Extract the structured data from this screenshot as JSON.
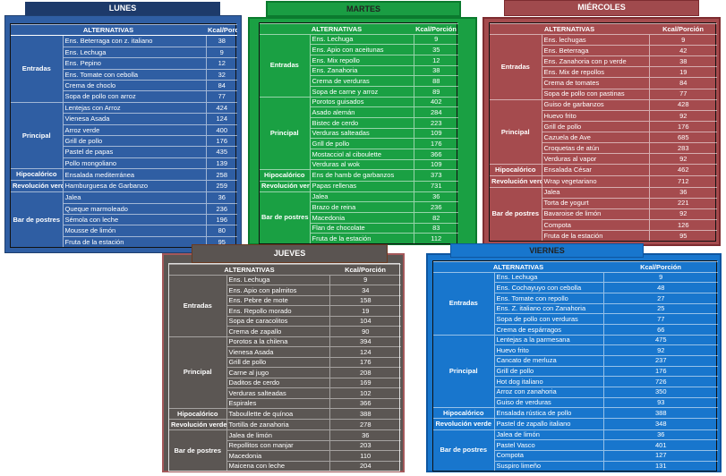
{
  "days": [
    {
      "key": "lunes",
      "title": "LUNES",
      "header": {
        "alt": "ALTERNATIVAS",
        "kcal": "Kcal/Porción"
      },
      "colors": {
        "card": "#2f5ea3",
        "tab": "#1d3a6a"
      },
      "sections": [
        {
          "name": "Entradas",
          "rows": [
            {
              "item": "Ens. Beterraga con z. italiano",
              "kcal": "38"
            },
            {
              "item": "Ens. Lechuga",
              "kcal": "9"
            },
            {
              "item": "Ens. Pepino",
              "kcal": "12"
            },
            {
              "item": "Ens. Tomate con cebolla",
              "kcal": "32"
            },
            {
              "item": "Crema de choclo",
              "kcal": "84"
            },
            {
              "item": "Sopa de pollo con arroz",
              "kcal": "77"
            }
          ]
        },
        {
          "name": "Principal",
          "rows": [
            {
              "item": "Lentejas con Arroz",
              "kcal": "424"
            },
            {
              "item": "Vienesa Asada",
              "kcal": "124"
            },
            {
              "item": "Arroz verde",
              "kcal": "400"
            },
            {
              "item": "Grill de pollo",
              "kcal": "176"
            },
            {
              "item": "Pastel de papas",
              "kcal": "435"
            },
            {
              "item": "Pollo mongoliano",
              "kcal": "139"
            }
          ]
        },
        {
          "name": "Hipocalórico",
          "rows": [
            {
              "item": "Ensalada mediterránea",
              "kcal": "258"
            }
          ]
        },
        {
          "name": "Revolución verde",
          "rows": [
            {
              "item": "Hamburguesa de Garbanzo",
              "kcal": "259"
            }
          ]
        },
        {
          "name": "Bar de postres",
          "rows": [
            {
              "item": "Jalea",
              "kcal": "36"
            },
            {
              "item": "Queque marmoleado",
              "kcal": "236"
            },
            {
              "item": "Sémola con leche",
              "kcal": "196"
            },
            {
              "item": "Mousse de limón",
              "kcal": "80"
            },
            {
              "item": "Fruta de la estación",
              "kcal": "95"
            }
          ]
        }
      ]
    },
    {
      "key": "martes",
      "title": "MARTES",
      "header": {
        "alt": "ALTERNATIVAS",
        "kcal": "Kcal/Porción"
      },
      "colors": {
        "card": "#1aa043",
        "tab": "#1a9d43"
      },
      "sections": [
        {
          "name": "Entradas",
          "rows": [
            {
              "item": "Ens. Lechuga",
              "kcal": "9"
            },
            {
              "item": "Ens. Apio con aceitunas",
              "kcal": "35"
            },
            {
              "item": "Ens. Mix repollo",
              "kcal": "12"
            },
            {
              "item": "Ens. Zanahoria",
              "kcal": "38"
            },
            {
              "item": "Crema de verduras",
              "kcal": "88"
            },
            {
              "item": "Sopa de carne y arroz",
              "kcal": "89"
            }
          ]
        },
        {
          "name": "Principal",
          "rows": [
            {
              "item": "Porotos guisados",
              "kcal": "402"
            },
            {
              "item": "Asado alemán",
              "kcal": "284"
            },
            {
              "item": "Bistec de cerdo",
              "kcal": "223"
            },
            {
              "item": "Verduras salteadas",
              "kcal": "109"
            },
            {
              "item": "Grill de pollo",
              "kcal": "176"
            },
            {
              "item": "Mostacciol al ciboulette",
              "kcal": "366"
            },
            {
              "item": "Verduras al wok",
              "kcal": "109"
            }
          ]
        },
        {
          "name": "Hipocalórico",
          "rows": [
            {
              "item": "Ens de hamb de garbanzos",
              "kcal": "373"
            }
          ]
        },
        {
          "name": "Revolución verde",
          "rows": [
            {
              "item": "Papas rellenas",
              "kcal": "731"
            }
          ]
        },
        {
          "name": "Bar de postres",
          "rows": [
            {
              "item": "Jalea",
              "kcal": "36"
            },
            {
              "item": "Brazo de reina",
              "kcal": "236"
            },
            {
              "item": "Macedonia",
              "kcal": "82"
            },
            {
              "item": "Flan de chocolate",
              "kcal": "83"
            },
            {
              "item": "Fruta de la estación",
              "kcal": "112"
            }
          ]
        }
      ]
    },
    {
      "key": "miercoles",
      "title": "MIÉRCOLES",
      "header": {
        "alt": "ALTERNATIVAS",
        "kcal": "Kcal/Porción"
      },
      "colors": {
        "card": "#a54b4e",
        "tab": "#a04a4d"
      },
      "sections": [
        {
          "name": "Entradas",
          "rows": [
            {
              "item": "Ens. lechugas",
              "kcal": "9"
            },
            {
              "item": "Ens. Beterraga",
              "kcal": "42"
            },
            {
              "item": "Ens. Zanahoria con p verde",
              "kcal": "38"
            },
            {
              "item": "Ens. Mix de repollos",
              "kcal": "19"
            },
            {
              "item": "Crema de tomates",
              "kcal": "84"
            },
            {
              "item": "Sopa de pollo con pastinas",
              "kcal": "77"
            }
          ]
        },
        {
          "name": "Principal",
          "rows": [
            {
              "item": "Guiso de garbanzos",
              "kcal": "428"
            },
            {
              "item": "Huevo frito",
              "kcal": "92"
            },
            {
              "item": "Grill de pollo",
              "kcal": "176"
            },
            {
              "item": "Cazuela de Ave",
              "kcal": "685"
            },
            {
              "item": "Croquetas de atún",
              "kcal": "283"
            },
            {
              "item": "Verduras al vapor",
              "kcal": "92"
            }
          ]
        },
        {
          "name": "Hipocalórico",
          "rows": [
            {
              "item": "Ensalada César",
              "kcal": "462"
            }
          ]
        },
        {
          "name": "Revolución verde",
          "rows": [
            {
              "item": "Wrap vegetariano",
              "kcal": "712"
            }
          ]
        },
        {
          "name": "Bar de postres",
          "rows": [
            {
              "item": "Jalea",
              "kcal": "36"
            },
            {
              "item": "Torta de yogurt",
              "kcal": "221"
            },
            {
              "item": "Bavaroise de limón",
              "kcal": "92"
            },
            {
              "item": "Compota",
              "kcal": "126"
            },
            {
              "item": "Fruta de la estación",
              "kcal": "95"
            }
          ]
        }
      ]
    },
    {
      "key": "jueves",
      "title": "JUEVES",
      "header": {
        "alt": "ALTERNATIVAS",
        "kcal": "Kcal/Porción"
      },
      "colors": {
        "card": "#5b5653",
        "tab": "#5a5451"
      },
      "sections": [
        {
          "name": "Entradas",
          "rows": [
            {
              "item": "Ens. Lechuga",
              "kcal": "9"
            },
            {
              "item": "Ens. Apio con palmitos",
              "kcal": "34"
            },
            {
              "item": "Ens. Pebre de mote",
              "kcal": "158"
            },
            {
              "item": "Ens. Repollo morado",
              "kcal": "19"
            },
            {
              "item": "Sopa de caracolitos",
              "kcal": "104"
            },
            {
              "item": "Crema de zapallo",
              "kcal": "90"
            }
          ]
        },
        {
          "name": "Principal",
          "rows": [
            {
              "item": "Porotos a la chilena",
              "kcal": "394"
            },
            {
              "item": "Vienesa Asada",
              "kcal": "124"
            },
            {
              "item": "Grill de pollo",
              "kcal": "176"
            },
            {
              "item": "Carne al jugo",
              "kcal": "208"
            },
            {
              "item": "Daditos de cerdo",
              "kcal": "169"
            },
            {
              "item": "Verduras salteadas",
              "kcal": "102"
            },
            {
              "item": "Espirales",
              "kcal": "366"
            }
          ]
        },
        {
          "name": "Hipocalórico",
          "rows": [
            {
              "item": "Taboullette de quínoa",
              "kcal": "388"
            }
          ]
        },
        {
          "name": "Revolución verde",
          "rows": [
            {
              "item": "Tortilla de zanahoria",
              "kcal": "278"
            }
          ]
        },
        {
          "name": "Bar de postres",
          "rows": [
            {
              "item": "Jalea de limón",
              "kcal": "36"
            },
            {
              "item": "Repollitos con manjar",
              "kcal": "203"
            },
            {
              "item": "Macedonia",
              "kcal": "110"
            },
            {
              "item": "Maicena con leche",
              "kcal": "204"
            }
          ]
        }
      ]
    },
    {
      "key": "viernes",
      "title": "VIERNES",
      "header": {
        "alt": "ALTERNATIVAS",
        "kcal": "Kcal/Porción"
      },
      "colors": {
        "card": "#1876cd",
        "tab": "#1876cd"
      },
      "sections": [
        {
          "name": "Entradas",
          "rows": [
            {
              "item": "Ens. Lechuga",
              "kcal": "9"
            },
            {
              "item": "Ens. Cochayuyo con cebolla",
              "kcal": "48"
            },
            {
              "item": "Ens. Tomate con repollo",
              "kcal": "27"
            },
            {
              "item": "Ens. Z. italiano con Zanahoria",
              "kcal": "25"
            },
            {
              "item": "Sopa de pollo con verduras",
              "kcal": "77"
            },
            {
              "item": "Crema de espárragos",
              "kcal": "66"
            }
          ]
        },
        {
          "name": "Principal",
          "rows": [
            {
              "item": "Lentejas a la parmesana",
              "kcal": "475"
            },
            {
              "item": "Huevo frito",
              "kcal": "92"
            },
            {
              "item": "Cancato de merluza",
              "kcal": "237"
            },
            {
              "item": "Grill de pollo",
              "kcal": "176"
            },
            {
              "item": "Hot dog italiano",
              "kcal": "726"
            },
            {
              "item": "Arroz con zanahoria",
              "kcal": "350"
            },
            {
              "item": "Guiso de verduras",
              "kcal": "93"
            }
          ]
        },
        {
          "name": "Hipocalórico",
          "rows": [
            {
              "item": "Ensalada rústica de pollo",
              "kcal": "388"
            }
          ]
        },
        {
          "name": "Revolución verde",
          "rows": [
            {
              "item": "Pastel de zapallo italiano",
              "kcal": "348"
            }
          ]
        },
        {
          "name": "Bar de postres",
          "rows": [
            {
              "item": "Jalea de limón",
              "kcal": "36"
            },
            {
              "item": "Pastel Vasco",
              "kcal": "401"
            },
            {
              "item": "Compota",
              "kcal": "127"
            },
            {
              "item": "Suspiro limeño",
              "kcal": "131"
            }
          ]
        }
      ]
    }
  ]
}
